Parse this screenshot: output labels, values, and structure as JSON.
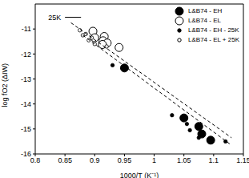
{
  "chart_data": {
    "type": "scatter",
    "x_label": "1000/T (K⁻¹)",
    "y_label": "log fO2 (ΔIW)",
    "xlim": [
      0.8,
      1.15
    ],
    "xticks": [
      0.8,
      0.85,
      0.9,
      0.95,
      1,
      1.05,
      1.1,
      1.15
    ],
    "ylim": [
      -16,
      -10
    ],
    "yticks": [
      -16,
      -15,
      -14,
      -13,
      -12,
      -11
    ],
    "legend": "top-right",
    "series": [
      {
        "name": "L&B74 - EH",
        "color": "#000000",
        "marker": "circle",
        "x": [
          0.95,
          1.05,
          1.075,
          1.08,
          1.095
        ],
        "values": [
          -12.56,
          -14.56,
          -14.9,
          -15.2,
          -15.45
        ]
      },
      {
        "name": "L&B74 - EL",
        "color": "#000000",
        "marker": "open_circle",
        "x": [
          0.897,
          0.9,
          0.916,
          0.914,
          0.921,
          0.913,
          0.941
        ],
        "values": [
          -11.09,
          -11.35,
          -11.3,
          -11.47,
          -11.56,
          -11.62,
          -11.74
        ]
      },
      {
        "name": "L&B74 - EH - 25K",
        "color": "#000000",
        "marker": "dot",
        "x": [
          0.93,
          1.03,
          1.055,
          1.06,
          1.075,
          1.12
        ],
        "values": [
          -12.45,
          -14.45,
          -14.8,
          -15.05,
          -15.35,
          -15.5
        ]
      },
      {
        "name": "L&B74 - EL + 25K",
        "color": "#000000",
        "marker": "open_dot",
        "x": [
          0.875,
          0.88,
          0.885,
          0.89,
          0.895,
          0.9,
          0.92
        ],
        "values": [
          -11.05,
          -11.25,
          -11.2,
          -11.45,
          -11.35,
          -11.6,
          -11.7
        ]
      },
      {
        "type": "line",
        "color": "#000000",
        "line_style": "dashed",
        "x": [
          0.86,
          1.13
        ],
        "values": [
          -10.75,
          -15.35
        ]
      },
      {
        "type": "line",
        "color": "#000000",
        "line_style": "dashed",
        "x": [
          0.88,
          1.13
        ],
        "values": [
          -11.25,
          -15.65
        ]
      }
    ],
    "annotations": [
      {
        "text": "25K",
        "y": -10.53,
        "bar": [
          0.85,
          0.877
        ]
      }
    ]
  }
}
